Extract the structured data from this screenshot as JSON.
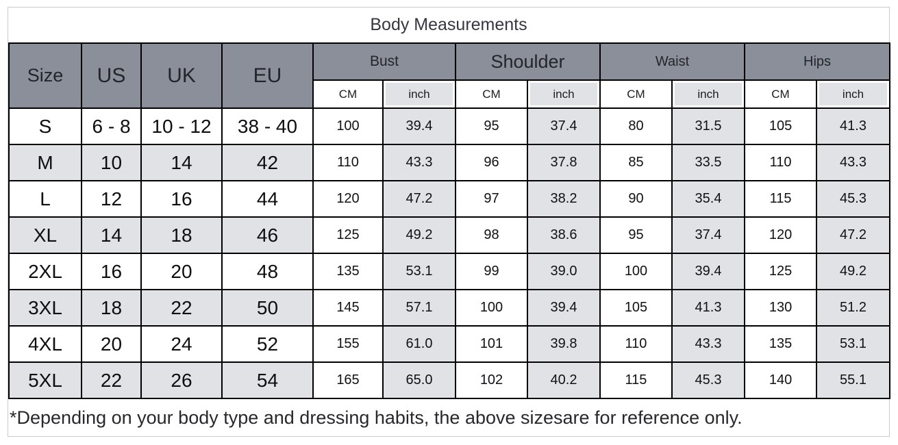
{
  "colors": {
    "header_bg": "#8a8f99",
    "stripe_bg": "#e1e2e6",
    "grid_border": "#000000",
    "outer_border": "#cbcbcb",
    "title_color": "#35383e"
  },
  "chart_data": {
    "type": "table",
    "title": "Body Measurements",
    "header": {
      "size": "Size",
      "us": "US",
      "uk": "UK",
      "eu": "EU",
      "groups": [
        "Bust",
        "Shoulder",
        "Waist",
        "Hips"
      ],
      "unit_cm": "CM",
      "unit_inch": "inch"
    },
    "columns": [
      "Size",
      "US",
      "UK",
      "EU",
      "Bust CM",
      "Bust inch",
      "Shoulder CM",
      "Shoulder inch",
      "Waist CM",
      "Waist inch",
      "Hips CM",
      "Hips inch"
    ],
    "rows": [
      {
        "size": "S",
        "us": "6 - 8",
        "uk": "10 - 12",
        "eu": "38 - 40",
        "bust_cm": "100",
        "bust_inch": "39.4",
        "shoulder_cm": "95",
        "shoulder_inch": "37.4",
        "waist_cm": "80",
        "waist_inch": "31.5",
        "hips_cm": "105",
        "hips_inch": "41.3"
      },
      {
        "size": "M",
        "us": "10",
        "uk": "14",
        "eu": "42",
        "bust_cm": "110",
        "bust_inch": "43.3",
        "shoulder_cm": "96",
        "shoulder_inch": "37.8",
        "waist_cm": "85",
        "waist_inch": "33.5",
        "hips_cm": "110",
        "hips_inch": "43.3"
      },
      {
        "size": "L",
        "us": "12",
        "uk": "16",
        "eu": "44",
        "bust_cm": "120",
        "bust_inch": "47.2",
        "shoulder_cm": "97",
        "shoulder_inch": "38.2",
        "waist_cm": "90",
        "waist_inch": "35.4",
        "hips_cm": "115",
        "hips_inch": "45.3"
      },
      {
        "size": "XL",
        "us": "14",
        "uk": "18",
        "eu": "46",
        "bust_cm": "125",
        "bust_inch": "49.2",
        "shoulder_cm": "98",
        "shoulder_inch": "38.6",
        "waist_cm": "95",
        "waist_inch": "37.4",
        "hips_cm": "120",
        "hips_inch": "47.2"
      },
      {
        "size": "2XL",
        "us": "16",
        "uk": "20",
        "eu": "48",
        "bust_cm": "135",
        "bust_inch": "53.1",
        "shoulder_cm": "99",
        "shoulder_inch": "39.0",
        "waist_cm": "100",
        "waist_inch": "39.4",
        "hips_cm": "125",
        "hips_inch": "49.2"
      },
      {
        "size": "3XL",
        "us": "18",
        "uk": "22",
        "eu": "50",
        "bust_cm": "145",
        "bust_inch": "57.1",
        "shoulder_cm": "100",
        "shoulder_inch": "39.4",
        "waist_cm": "105",
        "waist_inch": "41.3",
        "hips_cm": "130",
        "hips_inch": "51.2"
      },
      {
        "size": "4XL",
        "us": "20",
        "uk": "24",
        "eu": "52",
        "bust_cm": "155",
        "bust_inch": "61.0",
        "shoulder_cm": "101",
        "shoulder_inch": "39.8",
        "waist_cm": "110",
        "waist_inch": "43.3",
        "hips_cm": "135",
        "hips_inch": "53.1"
      },
      {
        "size": "5XL",
        "us": "22",
        "uk": "26",
        "eu": "54",
        "bust_cm": "165",
        "bust_inch": "65.0",
        "shoulder_cm": "102",
        "shoulder_inch": "40.2",
        "waist_cm": "115",
        "waist_inch": "45.3",
        "hips_cm": "140",
        "hips_inch": "55.1"
      }
    ],
    "footnote": "*Depending on your body type and dressing habits, the above sizesare for reference only."
  }
}
